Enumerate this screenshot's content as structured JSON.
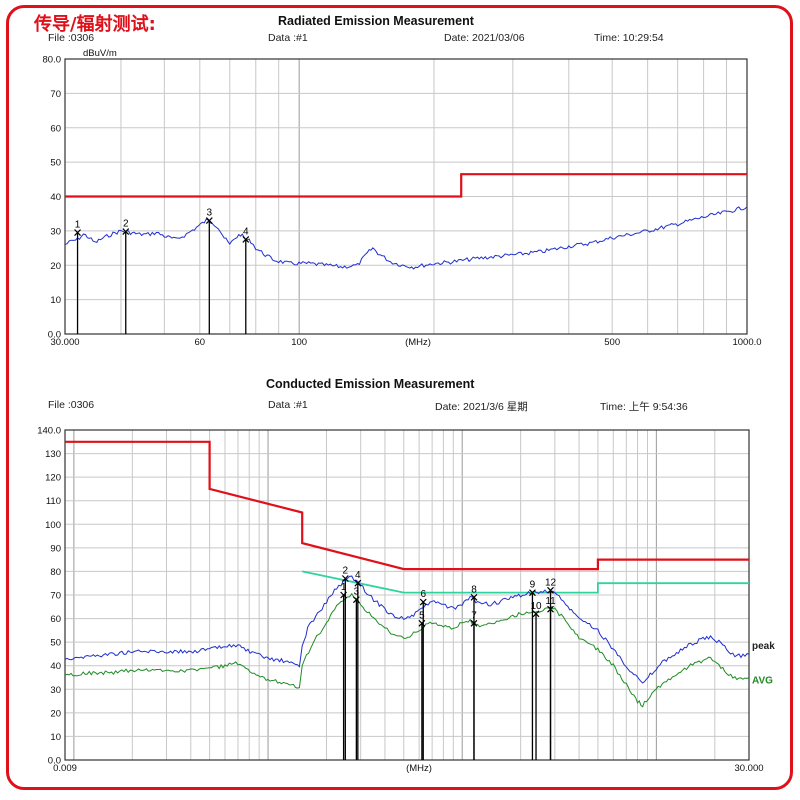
{
  "page_title": "传导/辐射测试:",
  "radiated": {
    "title": "Radiated Emission Measurement",
    "file": "File :0306",
    "data": "Data :#1",
    "date": "Date: 2021/03/06",
    "time": "Time: 10:29:54",
    "unit": "dBuV/m"
  },
  "conducted": {
    "title": "Conducted Emission Measurement",
    "file": "File :0306",
    "data": "Data :#1",
    "date": "Date: 2021/3/6 星期",
    "time": "Time: 上午 9:54:36"
  },
  "chart_data": [
    {
      "type": "line",
      "title": "Radiated Emission Measurement",
      "xlabel": "(MHz)",
      "ylabel": "dBuV/m",
      "xscale": "log",
      "xlim": [
        30,
        1000
      ],
      "ylim": [
        0,
        80
      ],
      "x_tick_labels": [
        {
          "value": 30,
          "label": "30.000"
        },
        {
          "value": 60,
          "label": "60"
        },
        {
          "value": 100,
          "label": "100"
        },
        {
          "value": 500,
          "label": "500"
        },
        {
          "value": 1000,
          "label": "1000.0"
        }
      ],
      "x_unit_label": "(MHz)",
      "y_ticks": [
        0,
        10,
        20,
        30,
        40,
        50,
        60,
        70,
        80
      ],
      "y_tick_labels": [
        "0.0",
        "10",
        "20",
        "30",
        "40",
        "50",
        "60",
        "70",
        "80.0"
      ],
      "grid": true,
      "limit_line": {
        "color": "#e0101a",
        "points": [
          [
            30,
            40
          ],
          [
            230,
            40
          ],
          [
            230,
            46.5
          ],
          [
            1000,
            46.5
          ]
        ]
      },
      "series": [
        {
          "color": "#1f2fd0",
          "points": [
            [
              30,
              26
            ],
            [
              31,
              27
            ],
            [
              32,
              27.5
            ],
            [
              33,
              29
            ],
            [
              34,
              28
            ],
            [
              35,
              26.5
            ],
            [
              36,
              27.5
            ],
            [
              38,
              29
            ],
            [
              40,
              30
            ],
            [
              42,
              29.5
            ],
            [
              44,
              29
            ],
            [
              46,
              29
            ],
            [
              48,
              29.5
            ],
            [
              50,
              28.5
            ],
            [
              53,
              27.5
            ],
            [
              56,
              29
            ],
            [
              59,
              31
            ],
            [
              62,
              33
            ],
            [
              64,
              32.5
            ],
            [
              66,
              31
            ],
            [
              68,
              28
            ],
            [
              70,
              26
            ],
            [
              72,
              28
            ],
            [
              74,
              29
            ],
            [
              76,
              27.5
            ],
            [
              78,
              27
            ],
            [
              80,
              25
            ],
            [
              84,
              23
            ],
            [
              88,
              21.5
            ],
            [
              95,
              20.5
            ],
            [
              105,
              20.5
            ],
            [
              115,
              20
            ],
            [
              125,
              19.5
            ],
            [
              135,
              20
            ],
            [
              142,
              23.5
            ],
            [
              146,
              25
            ],
            [
              150,
              23.5
            ],
            [
              160,
              21
            ],
            [
              170,
              20
            ],
            [
              180,
              19.5
            ],
            [
              190,
              20
            ],
            [
              200,
              20.5
            ],
            [
              220,
              21
            ],
            [
              250,
              22
            ],
            [
              300,
              23
            ],
            [
              350,
              24
            ],
            [
              400,
              25.5
            ],
            [
              450,
              26.5
            ],
            [
              500,
              28
            ],
            [
              550,
              29
            ],
            [
              600,
              30
            ],
            [
              700,
              32
            ],
            [
              800,
              34
            ],
            [
              900,
              35.5
            ],
            [
              1000,
              37
            ]
          ]
        }
      ],
      "markers": [
        {
          "label": "1",
          "x": 32,
          "y": 29.5
        },
        {
          "label": "2",
          "x": 41,
          "y": 29.8
        },
        {
          "label": "3",
          "x": 63,
          "y": 33
        },
        {
          "label": "4",
          "x": 76,
          "y": 27.5
        }
      ]
    },
    {
      "type": "line",
      "title": "Conducted Emission Measurement",
      "xlabel": "(MHz)",
      "ylabel": "",
      "xscale": "log",
      "xlim": [
        0.009,
        30
      ],
      "ylim": [
        0,
        140
      ],
      "x_tick_labels": [
        {
          "value": 0.009,
          "label": "0.009"
        },
        {
          "value": 30,
          "label": "30.000"
        }
      ],
      "x_unit_label": "(MHz)",
      "y_ticks": [
        0,
        10,
        20,
        30,
        40,
        50,
        60,
        70,
        80,
        90,
        100,
        110,
        120,
        130,
        140
      ],
      "y_tick_labels": [
        "0.0",
        "10",
        "20",
        "30",
        "40",
        "50",
        "60",
        "70",
        "80",
        "90",
        "100",
        "110",
        "120",
        "130",
        "140.0"
      ],
      "grid": true,
      "limit_line": {
        "color": "#e0101a",
        "points": [
          [
            0.009,
            135
          ],
          [
            0.05,
            135
          ],
          [
            0.05,
            115
          ],
          [
            0.15,
            105
          ],
          [
            0.15,
            92
          ],
          [
            0.5,
            81
          ],
          [
            5,
            81
          ],
          [
            5,
            85
          ],
          [
            30,
            85
          ]
        ]
      },
      "avg_limit_line": {
        "color": "#2fd3a0",
        "points": [
          [
            0.15,
            80
          ],
          [
            0.5,
            71
          ],
          [
            5,
            71
          ],
          [
            5,
            75
          ],
          [
            30,
            75
          ]
        ]
      },
      "series": [
        {
          "name": "peak",
          "color": "#1f2fd0",
          "points": [
            [
              0.009,
              43
            ],
            [
              0.012,
              44
            ],
            [
              0.016,
              45
            ],
            [
              0.02,
              46
            ],
            [
              0.03,
              46
            ],
            [
              0.04,
              46
            ],
            [
              0.05,
              47
            ],
            [
              0.06,
              48
            ],
            [
              0.07,
              49
            ],
            [
              0.075,
              47
            ],
            [
              0.085,
              45
            ],
            [
              0.1,
              43
            ],
            [
              0.12,
              42
            ],
            [
              0.145,
              40
            ],
            [
              0.15,
              48
            ],
            [
              0.16,
              56
            ],
            [
              0.18,
              62
            ],
            [
              0.2,
              67
            ],
            [
              0.22,
              72
            ],
            [
              0.25,
              76
            ],
            [
              0.27,
              78
            ],
            [
              0.3,
              74
            ],
            [
              0.35,
              68
            ],
            [
              0.4,
              64
            ],
            [
              0.45,
              61
            ],
            [
              0.5,
              60
            ],
            [
              0.55,
              61
            ],
            [
              0.6,
              63
            ],
            [
              0.65,
              66
            ],
            [
              0.7,
              67
            ],
            [
              0.8,
              66
            ],
            [
              0.9,
              64
            ],
            [
              1,
              66
            ],
            [
              1.1,
              69
            ],
            [
              1.2,
              67
            ],
            [
              1.4,
              66
            ],
            [
              1.7,
              68
            ],
            [
              2,
              70
            ],
            [
              2.3,
              71
            ],
            [
              2.6,
              71
            ],
            [
              2.8,
              72
            ],
            [
              3,
              71
            ],
            [
              3.5,
              65
            ],
            [
              4,
              60
            ],
            [
              5,
              55
            ],
            [
              6,
              47
            ],
            [
              7,
              40
            ],
            [
              8,
              35
            ],
            [
              8.5,
              32
            ],
            [
              9.5,
              37
            ],
            [
              11,
              42
            ],
            [
              13,
              46
            ],
            [
              15,
              49
            ],
            [
              17,
              51
            ],
            [
              19,
              52
            ],
            [
              21,
              50
            ],
            [
              23,
              47
            ],
            [
              26,
              44
            ],
            [
              30,
              45
            ]
          ]
        },
        {
          "name": "AVG",
          "color": "#1e8c24",
          "points": [
            [
              0.009,
              36
            ],
            [
              0.012,
              37
            ],
            [
              0.016,
              37
            ],
            [
              0.02,
              38
            ],
            [
              0.03,
              38
            ],
            [
              0.04,
              38
            ],
            [
              0.05,
              39
            ],
            [
              0.06,
              40
            ],
            [
              0.07,
              41
            ],
            [
              0.075,
              39
            ],
            [
              0.085,
              36
            ],
            [
              0.1,
              34
            ],
            [
              0.12,
              33
            ],
            [
              0.145,
              31
            ],
            [
              0.15,
              40
            ],
            [
              0.17,
              50
            ],
            [
              0.2,
              58
            ],
            [
              0.22,
              64
            ],
            [
              0.25,
              68
            ],
            [
              0.27,
              70
            ],
            [
              0.3,
              66
            ],
            [
              0.35,
              60
            ],
            [
              0.4,
              56
            ],
            [
              0.45,
              53
            ],
            [
              0.5,
              52
            ],
            [
              0.55,
              53
            ],
            [
              0.6,
              55
            ],
            [
              0.65,
              57
            ],
            [
              0.7,
              58
            ],
            [
              0.8,
              57
            ],
            [
              0.9,
              56
            ],
            [
              1,
              58
            ],
            [
              1.1,
              59
            ],
            [
              1.2,
              57
            ],
            [
              1.4,
              58
            ],
            [
              1.7,
              60
            ],
            [
              2,
              62
            ],
            [
              2.3,
              63
            ],
            [
              2.6,
              63
            ],
            [
              2.8,
              65
            ],
            [
              3,
              64
            ],
            [
              3.5,
              58
            ],
            [
              4,
              52
            ],
            [
              5,
              47
            ],
            [
              6,
              40
            ],
            [
              7,
              32
            ],
            [
              8,
              25
            ],
            [
              8.5,
              23
            ],
            [
              9.5,
              28
            ],
            [
              11,
              33
            ],
            [
              13,
              37
            ],
            [
              15,
              40
            ],
            [
              17,
              42
            ],
            [
              19,
              43
            ],
            [
              21,
              40
            ],
            [
              23,
              37
            ],
            [
              26,
              34
            ],
            [
              30,
              35
            ]
          ]
        }
      ],
      "markers": [
        {
          "label": "1",
          "x": 0.245,
          "y": 70
        },
        {
          "label": "2",
          "x": 0.25,
          "y": 77
        },
        {
          "label": "3",
          "x": 0.285,
          "y": 68
        },
        {
          "label": "4",
          "x": 0.29,
          "y": 75
        },
        {
          "label": "5",
          "x": 0.62,
          "y": 58
        },
        {
          "label": "6",
          "x": 0.63,
          "y": 67
        },
        {
          "label": "7",
          "x": 1.15,
          "y": 58
        },
        {
          "label": "8",
          "x": 1.15,
          "y": 69
        },
        {
          "label": "9",
          "x": 2.3,
          "y": 71
        },
        {
          "label": "10",
          "x": 2.4,
          "y": 62
        },
        {
          "label": "11",
          "x": 2.85,
          "y": 64
        },
        {
          "label": "12",
          "x": 2.85,
          "y": 72
        }
      ]
    }
  ]
}
